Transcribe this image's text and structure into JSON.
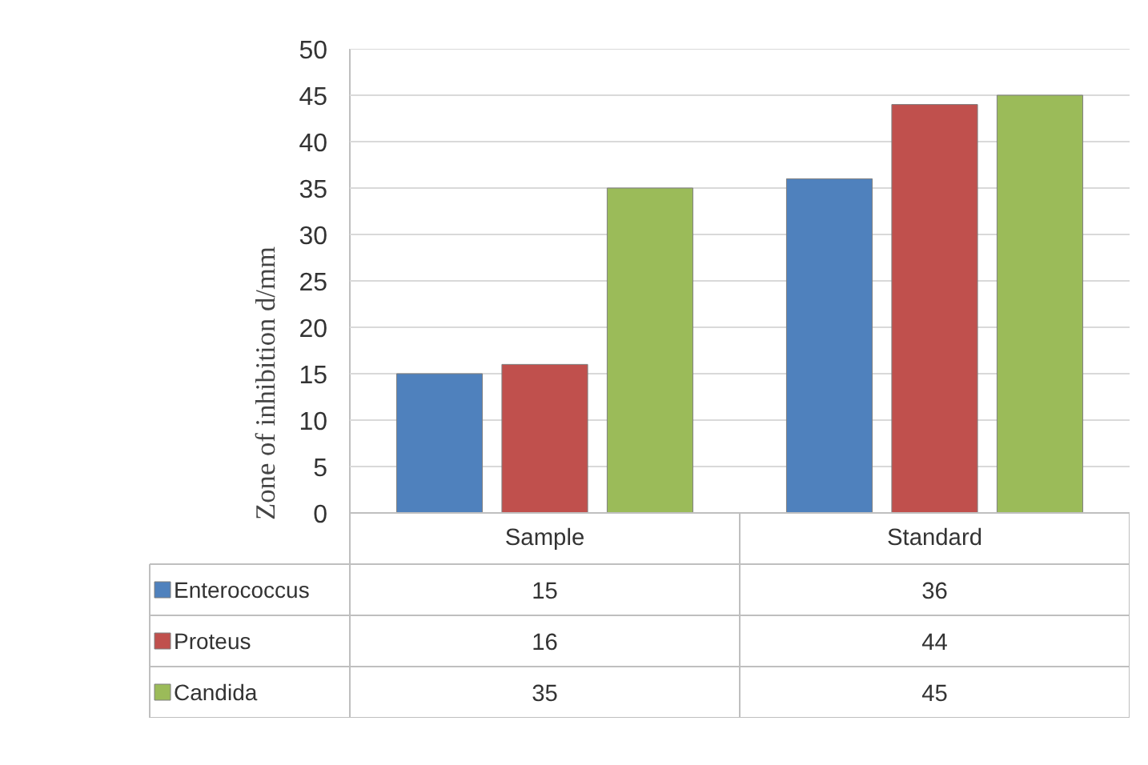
{
  "chart_data": {
    "type": "bar",
    "ylabel": "Zone of inhibition d/mm",
    "categories": [
      "Sample",
      "Standard"
    ],
    "series": [
      {
        "name": "Enterococcus",
        "color": "#4f81bd",
        "values": [
          15,
          36
        ]
      },
      {
        "name": "Proteus",
        "color": "#c0504d",
        "values": [
          16,
          44
        ]
      },
      {
        "name": "Candida",
        "color": "#9bbb59",
        "values": [
          35,
          45
        ]
      }
    ],
    "ylim": [
      0,
      50
    ],
    "yticks": [
      0,
      5,
      10,
      15,
      20,
      25,
      30,
      35,
      40,
      45,
      50
    ],
    "grid": "y",
    "legend": "bottom",
    "data_labels": true
  }
}
